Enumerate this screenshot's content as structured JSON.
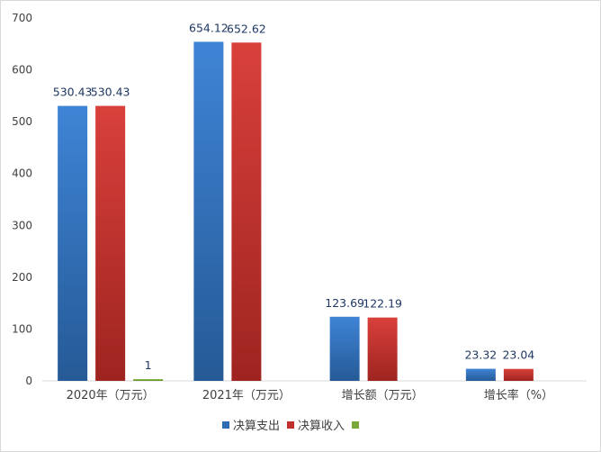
{
  "chart_data": {
    "type": "bar",
    "categories": [
      "2020年（万元）",
      "2021年（万元）",
      "增长额（万元）",
      "增长率（%）"
    ],
    "series": [
      {
        "name": "决算支出",
        "values": [
          530.43,
          654.12,
          123.69,
          23.32
        ],
        "labels": [
          "530.43",
          "654.12",
          "123.69",
          "23.32"
        ],
        "color": "#2e6db3"
      },
      {
        "name": "决算收入",
        "values": [
          530.43,
          652.62,
          122.19,
          23.04
        ],
        "labels": [
          "530.43",
          "652.62",
          "122.19",
          "23.04"
        ],
        "color": "#c0302c"
      },
      {
        "name": "",
        "values": [
          1,
          null,
          null,
          null
        ],
        "labels": [
          "1",
          "",
          "",
          ""
        ],
        "color": "#7aa838"
      }
    ],
    "ylim": [
      0,
      700
    ],
    "yticks": [
      0,
      100,
      200,
      300,
      400,
      500,
      600,
      700
    ],
    "grid": false,
    "legend": "bottom"
  }
}
